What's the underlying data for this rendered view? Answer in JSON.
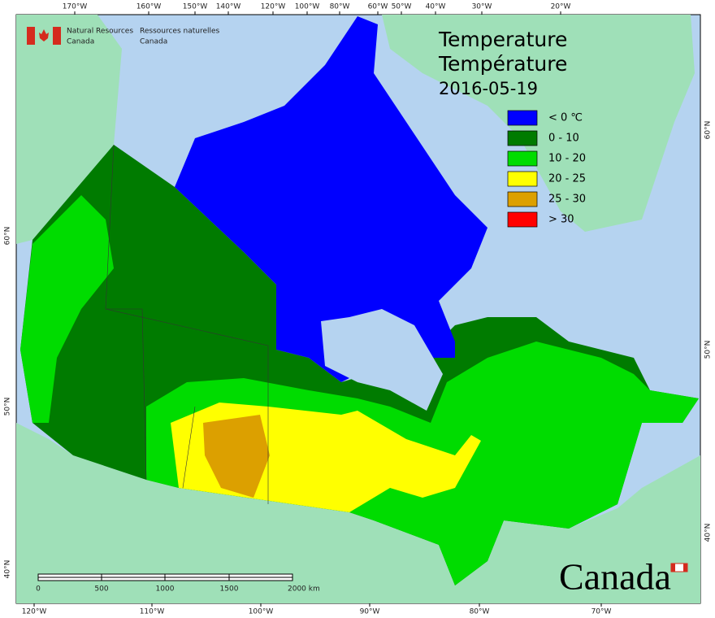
{
  "header": {
    "agency_en": [
      "Natural Resources",
      "Canada"
    ],
    "agency_fr": [
      "Ressources naturelles",
      "Canada"
    ]
  },
  "title": [
    "Temperature",
    "Température"
  ],
  "date": "2016-05-19",
  "legend": [
    {
      "label": "< 0 ℃",
      "color": "#0000ff"
    },
    {
      "label": "0 - 10",
      "color": "#007b00"
    },
    {
      "label": "10 - 20",
      "color": "#00dc00"
    },
    {
      "label": "20 - 25",
      "color": "#ffff00"
    },
    {
      "label": "25 - 30",
      "color": "#dca000"
    },
    {
      "label": "> 30",
      "color": "#ff0000"
    }
  ],
  "graticule": {
    "top": [
      "170°W",
      "160°W",
      "150°W",
      "140°W",
      "120°W",
      "100°W",
      "80°W",
      "60°W",
      "50°W",
      "40°W",
      "30°W",
      "20°W"
    ],
    "bottom": [
      "120°W",
      "110°W",
      "100°W",
      "90°W",
      "80°W",
      "70°W"
    ],
    "left": [
      "60°N",
      "50°N",
      "40°N"
    ],
    "right": [
      "60°N",
      "50°N",
      "40°N"
    ]
  },
  "scale_bar": {
    "labels": [
      "0",
      "500",
      "1000",
      "1500",
      "2000 km"
    ]
  },
  "wordmark": "Canada"
}
